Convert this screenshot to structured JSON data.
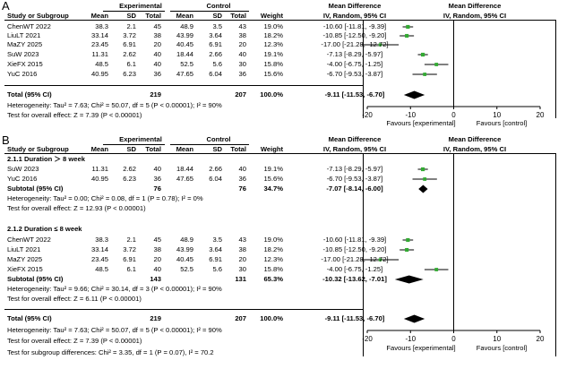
{
  "headers": {
    "study": "Study or Subgroup",
    "experimental": "Experimental",
    "control": "Control",
    "mean": "Mean",
    "sd": "SD",
    "total": "Total",
    "weight": "Weight",
    "md": "Mean Difference",
    "md_sub": "IV, Random, 95% CI"
  },
  "panelA": {
    "letter": "A",
    "studies": [
      {
        "study": "ChenWT 2022",
        "em": "38.3",
        "esd": "2.1",
        "et": "45",
        "cm": "48.9",
        "csd": "3.5",
        "ct": "43",
        "weight": "19.0%",
        "ci": "-10.60 [-11.81, -9.39]"
      },
      {
        "study": "LiuLT 2021",
        "em": "33.14",
        "esd": "3.72",
        "et": "38",
        "cm": "43.99",
        "csd": "3.64",
        "ct": "38",
        "weight": "18.2%",
        "ci": "-10.85 [-12.50, -9.20]"
      },
      {
        "study": "MaZY 2025",
        "em": "23.45",
        "esd": "6.91",
        "et": "20",
        "cm": "40.45",
        "csd": "6.91",
        "ct": "20",
        "weight": "12.3%",
        "ci": "-17.00 [-21.28, -12.72]"
      },
      {
        "study": "SuW 2023",
        "em": "11.31",
        "esd": "2.62",
        "et": "40",
        "cm": "18.44",
        "csd": "2.66",
        "ct": "40",
        "weight": "19.1%",
        "ci": "-7.13 [-8.29, -5.97]"
      },
      {
        "study": "XieFX 2015",
        "em": "48.5",
        "esd": "6.1",
        "et": "40",
        "cm": "52.5",
        "csd": "5.6",
        "ct": "30",
        "weight": "15.8%",
        "ci": "-4.00 [-6.75, -1.25]"
      },
      {
        "study": "YuC 2016",
        "em": "40.95",
        "esd": "6.23",
        "et": "36",
        "cm": "47.65",
        "csd": "6.04",
        "ct": "36",
        "weight": "15.6%",
        "ci": "-6.70 [-9.53, -3.87]"
      }
    ],
    "total": {
      "label": "Total (95% CI)",
      "et": "219",
      "ct": "207",
      "weight": "100.0%",
      "ci": "-9.11 [-11.53, -6.70]"
    },
    "heterogeneity": "Heterogeneity: Tau² = 7.63; Chi² = 50.07, df = 5 (P < 0.00001); I² = 90%",
    "overall": "Test for overall effect: Z = 7.39 (P < 0.00001)",
    "favours_left": "Favours [experimental]",
    "favours_right": "Favours [control]"
  },
  "panelB": {
    "letter": "B",
    "sub1": {
      "title": "2.1.1 Duration ＞ 8 week",
      "studies": [
        {
          "study": "SuW 2023",
          "em": "11.31",
          "esd": "2.62",
          "et": "40",
          "cm": "18.44",
          "csd": "2.66",
          "ct": "40",
          "weight": "19.1%",
          "ci": "-7.13 [-8.29, -5.97]"
        },
        {
          "study": "YuC 2016",
          "em": "40.95",
          "esd": "6.23",
          "et": "36",
          "cm": "47.65",
          "csd": "6.04",
          "ct": "36",
          "weight": "15.6%",
          "ci": "-6.70 [-9.53, -3.87]"
        }
      ],
      "subtotal": {
        "label": "Subtotal (95% CI)",
        "et": "76",
        "ct": "76",
        "weight": "34.7%",
        "ci": "-7.07 [-8.14, -6.00]"
      },
      "heterogeneity": "Heterogeneity: Tau² = 0.00; Chi² = 0.08, df = 1 (P = 0.78); I² = 0%",
      "overall": "Test for overall effect: Z = 12.93 (P < 0.00001)"
    },
    "sub2": {
      "title": "2.1.2 Duration ≤ 8 week",
      "studies": [
        {
          "study": "ChenWT 2022",
          "em": "38.3",
          "esd": "2.1",
          "et": "45",
          "cm": "48.9",
          "csd": "3.5",
          "ct": "43",
          "weight": "19.0%",
          "ci": "-10.60 [-11.81, -9.39]"
        },
        {
          "study": "LiuLT 2021",
          "em": "33.14",
          "esd": "3.72",
          "et": "38",
          "cm": "43.99",
          "csd": "3.64",
          "ct": "38",
          "weight": "18.2%",
          "ci": "-10.85 [-12.50, -9.20]"
        },
        {
          "study": "MaZY 2025",
          "em": "23.45",
          "esd": "6.91",
          "et": "20",
          "cm": "40.45",
          "csd": "6.91",
          "ct": "20",
          "weight": "12.3%",
          "ci": "-17.00 [-21.28, -12.72]"
        },
        {
          "study": "XieFX 2015",
          "em": "48.5",
          "esd": "6.1",
          "et": "40",
          "cm": "52.5",
          "csd": "5.6",
          "ct": "30",
          "weight": "15.8%",
          "ci": "-4.00 [-6.75, -1.25]"
        }
      ],
      "subtotal": {
        "label": "Subtotal (95% CI)",
        "et": "143",
        "ct": "131",
        "weight": "65.3%",
        "ci": "-10.32 [-13.62, -7.01]"
      },
      "heterogeneity": "Heterogeneity: Tau² = 9.66; Chi² = 30.14, df = 3 (P < 0.00001); I² = 90%",
      "overall": "Test for overall effect: Z = 6.11 (P < 0.00001)"
    },
    "total": {
      "label": "Total (95% CI)",
      "et": "219",
      "ct": "207",
      "weight": "100.0%",
      "ci": "-9.11 [-11.53, -6.70]"
    },
    "heterogeneity": "Heterogeneity: Tau² = 7.63; Chi² = 50.07, df = 5 (P < 0.00001); I² = 90%",
    "overall": "Test for overall effect: Z = 7.39 (P < 0.00001)",
    "subgroup_diff": "Test for subgroup differences: Chi² = 3.35, df = 1 (P = 0.07), I² = 70.2",
    "favours_left": "Favours [experimental]",
    "favours_right": "Favours [control]"
  },
  "colors": {
    "marker": "#33aa33",
    "diamond": "#000000",
    "line": "#000000"
  },
  "chart_data": [
    {
      "type": "scatter",
      "title": "A",
      "xlabel": "Mean Difference IV, Random, 95% CI",
      "xlim": [
        -20,
        20
      ],
      "ticks": [
        -20,
        -10,
        0,
        10,
        20
      ],
      "tick_labels": [
        "-20",
        "-10",
        "0",
        "10",
        "20"
      ],
      "series": [
        {
          "name": "studies",
          "points": [
            {
              "label": "ChenWT 2022",
              "md": -10.6,
              "lo": -11.81,
              "hi": -9.39,
              "weight": 19.0
            },
            {
              "label": "LiuLT 2021",
              "md": -10.85,
              "lo": -12.5,
              "hi": -9.2,
              "weight": 18.2
            },
            {
              "label": "MaZY 2025",
              "md": -17.0,
              "lo": -21.28,
              "hi": -12.72,
              "weight": 12.3
            },
            {
              "label": "SuW 2023",
              "md": -7.13,
              "lo": -8.29,
              "hi": -5.97,
              "weight": 19.1
            },
            {
              "label": "XieFX 2015",
              "md": -4.0,
              "lo": -6.75,
              "hi": -1.25,
              "weight": 15.8
            },
            {
              "label": "YuC 2016",
              "md": -6.7,
              "lo": -9.53,
              "hi": -3.87,
              "weight": 15.6
            }
          ]
        }
      ],
      "diamonds": [
        {
          "label": "Total (95% CI)",
          "md": -9.11,
          "lo": -11.53,
          "hi": -6.7
        }
      ]
    },
    {
      "type": "scatter",
      "title": "B",
      "xlabel": "Mean Difference IV, Random, 95% CI",
      "xlim": [
        -20,
        20
      ],
      "ticks": [
        -20,
        -10,
        0,
        10,
        20
      ],
      "tick_labels": [
        "-20",
        "-10",
        "0",
        "10",
        "20"
      ],
      "series": [
        {
          "name": "Duration > 8 week",
          "points": [
            {
              "label": "SuW 2023",
              "md": -7.13,
              "lo": -8.29,
              "hi": -5.97,
              "weight": 19.1
            },
            {
              "label": "YuC 2016",
              "md": -6.7,
              "lo": -9.53,
              "hi": -3.87,
              "weight": 15.6
            }
          ]
        },
        {
          "name": "Duration ≤ 8 week",
          "points": [
            {
              "label": "ChenWT 2022",
              "md": -10.6,
              "lo": -11.81,
              "hi": -9.39,
              "weight": 19.0
            },
            {
              "label": "LiuLT 2021",
              "md": -10.85,
              "lo": -12.5,
              "hi": -9.2,
              "weight": 18.2
            },
            {
              "label": "MaZY 2025",
              "md": -17.0,
              "lo": -21.28,
              "hi": -12.72,
              "weight": 12.3
            },
            {
              "label": "XieFX 2015",
              "md": -4.0,
              "lo": -6.75,
              "hi": -1.25,
              "weight": 15.8
            }
          ]
        }
      ],
      "diamonds": [
        {
          "label": "Subtotal > 8 week",
          "md": -7.07,
          "lo": -8.14,
          "hi": -6.0
        },
        {
          "label": "Subtotal ≤ 8 week",
          "md": -10.32,
          "lo": -13.62,
          "hi": -7.01
        },
        {
          "label": "Total (95% CI)",
          "md": -9.11,
          "lo": -11.53,
          "hi": -6.7
        }
      ]
    }
  ]
}
